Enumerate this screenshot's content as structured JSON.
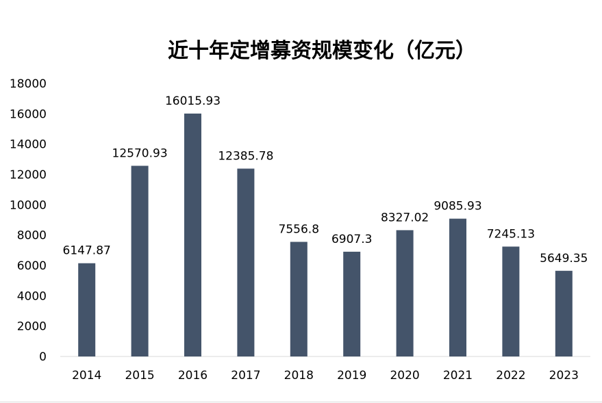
{
  "chart_data": {
    "type": "bar",
    "title": "近十年定增募资规模变化（亿元）",
    "xlabel": "",
    "ylabel": "",
    "categories": [
      "2014",
      "2015",
      "2016",
      "2017",
      "2018",
      "2019",
      "2020",
      "2021",
      "2022",
      "2023"
    ],
    "values": [
      6147.87,
      12570.93,
      16015.93,
      12385.78,
      7556.8,
      6907.3,
      8327.02,
      9085.93,
      7245.13,
      5649.35
    ],
    "value_labels": [
      "6147.87",
      "12570.93",
      "16015.93",
      "12385.78",
      "7556.8",
      "6907.3",
      "8327.02",
      "9085.93",
      "7245.13",
      "5649.35"
    ],
    "ylim": [
      0,
      18000
    ],
    "yticks": [
      "0",
      "2000",
      "4000",
      "6000",
      "8000",
      "10000",
      "12000",
      "14000",
      "16000",
      "18000"
    ],
    "grid": false,
    "legend": "none",
    "bar_color": "#44546A"
  }
}
